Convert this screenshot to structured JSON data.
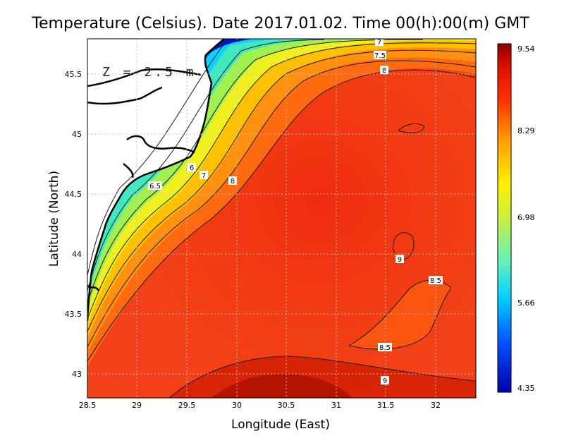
{
  "title": "Temperature (Celsius). Date 2017.01.02. Time 00(h):00(m)  GMT",
  "depth_label": "Z = 2.5 m",
  "x_axis": {
    "label": "Longitude (East)",
    "ticks": [
      "28.5",
      "29",
      "29.5",
      "30",
      "30.5",
      "31",
      "31.5",
      "32"
    ],
    "range": [
      28.5,
      32.4
    ]
  },
  "y_axis": {
    "label": "Latitude (North)",
    "ticks": [
      "43",
      "43.5",
      "44",
      "44.5",
      "45",
      "45.5"
    ],
    "range": [
      42.8,
      45.8
    ]
  },
  "colorbar": {
    "ticks": [
      "9.54",
      "8.29",
      "6.98",
      "5.66",
      "4.35"
    ],
    "min": 4.35,
    "max": 9.54
  },
  "contour_labels": [
    "7",
    "7.5",
    "8",
    "6",
    "7",
    "8",
    "6.5",
    "9",
    "8.5",
    "8.5",
    "9"
  ]
}
